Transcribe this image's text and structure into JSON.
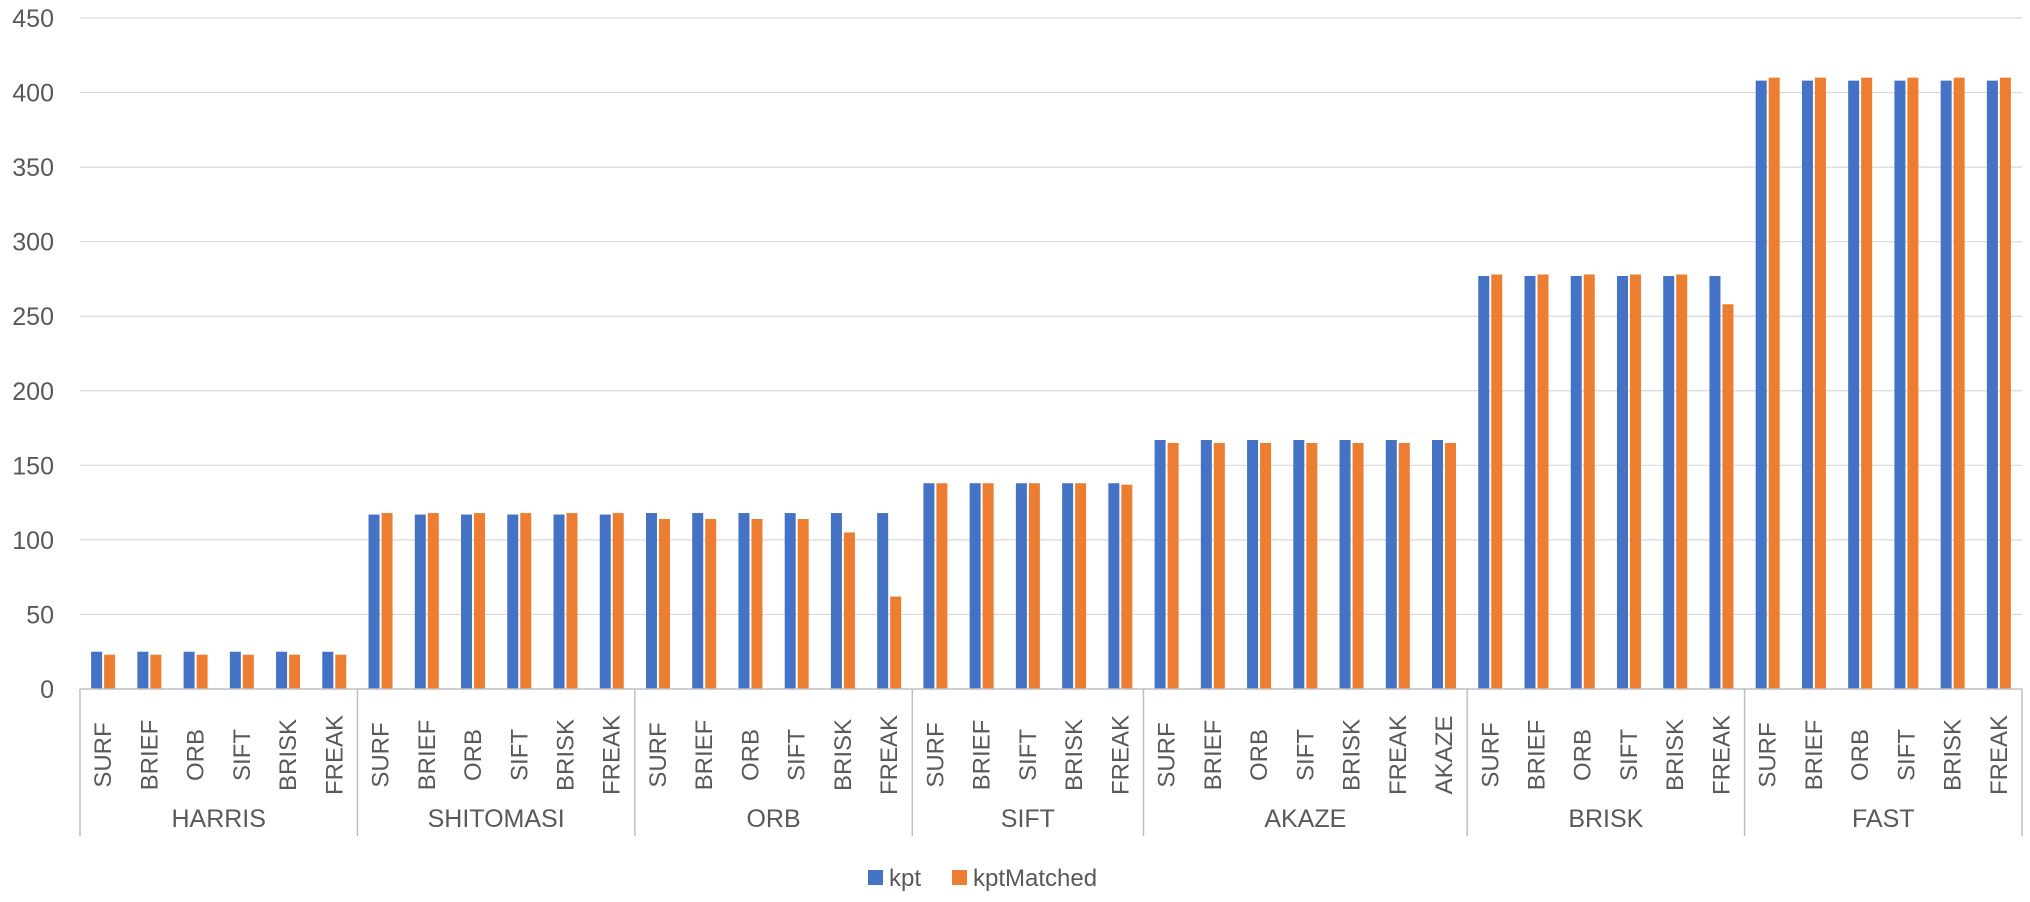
{
  "chart_data": {
    "type": "bar",
    "title": "",
    "xlabel": "",
    "ylabel": "",
    "ylim": [
      0,
      450
    ],
    "yticks": [
      0,
      50,
      100,
      150,
      200,
      250,
      300,
      350,
      400,
      450
    ],
    "grid": true,
    "legend": "bottom",
    "groups": [
      {
        "name": "HARRIS",
        "categories": [
          "SURF",
          "BRIEF",
          "ORB",
          "SIFT",
          "BRISK",
          "FREAK"
        ]
      },
      {
        "name": "SHITOMASI",
        "categories": [
          "SURF",
          "BRIEF",
          "ORB",
          "SIFT",
          "BRISK",
          "FREAK"
        ]
      },
      {
        "name": "ORB",
        "categories": [
          "SURF",
          "BRIEF",
          "ORB",
          "SIFT",
          "BRISK",
          "FREAK"
        ]
      },
      {
        "name": "SIFT",
        "categories": [
          "SURF",
          "BRIEF",
          "SIFT",
          "BRISK",
          "FREAK"
        ]
      },
      {
        "name": "AKAZE",
        "categories": [
          "SURF",
          "BRIEF",
          "ORB",
          "SIFT",
          "BRISK",
          "FREAK",
          "AKAZE"
        ]
      },
      {
        "name": "BRISK",
        "categories": [
          "SURF",
          "BRIEF",
          "ORB",
          "SIFT",
          "BRISK",
          "FREAK"
        ]
      },
      {
        "name": "FAST",
        "categories": [
          "SURF",
          "BRIEF",
          "ORB",
          "SIFT",
          "BRISK",
          "FREAK"
        ]
      }
    ],
    "series": [
      {
        "name": "kpt",
        "color": "#4472C4",
        "values": [
          25,
          25,
          25,
          25,
          25,
          25,
          117,
          117,
          117,
          117,
          117,
          117,
          118,
          118,
          118,
          118,
          118,
          118,
          138,
          138,
          138,
          138,
          138,
          167,
          167,
          167,
          167,
          167,
          167,
          167,
          277,
          277,
          277,
          277,
          277,
          277,
          408,
          408,
          408,
          408,
          408,
          408
        ]
      },
      {
        "name": "kptMatched",
        "color": "#ED7D31",
        "values": [
          23,
          23,
          23,
          23,
          23,
          23,
          118,
          118,
          118,
          118,
          118,
          118,
          114,
          114,
          114,
          114,
          105,
          62,
          138,
          138,
          138,
          138,
          137,
          165,
          165,
          165,
          165,
          165,
          165,
          165,
          278,
          278,
          278,
          278,
          278,
          258,
          410,
          410,
          410,
          410,
          410,
          410
        ]
      }
    ]
  },
  "colors": {
    "gridline": "#D9D9D9",
    "axis": "#BFBFBF",
    "text": "#595959"
  }
}
